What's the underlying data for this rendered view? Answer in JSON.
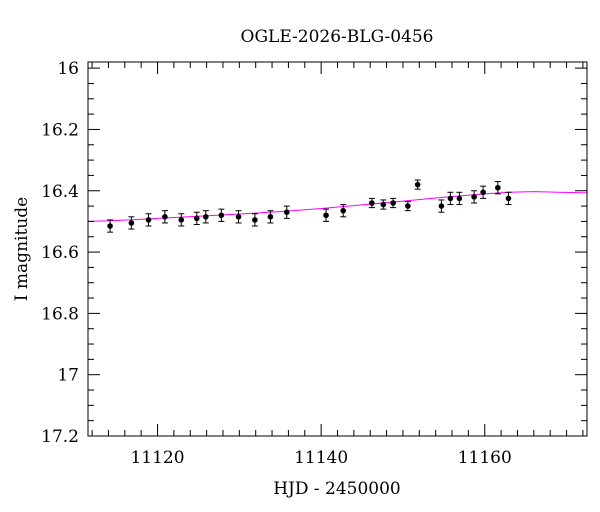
{
  "chart_data": {
    "type": "scatter",
    "title": "OGLE-2026-BLG-0456",
    "xlabel": "HJD - 2450000",
    "ylabel": "I magnitude",
    "xlim": [
      11111.5,
      11172.5
    ],
    "ylim": [
      17.2,
      15.98
    ],
    "y_inverted": true,
    "grid": false,
    "x_major_ticks": [
      11120,
      11140,
      11160
    ],
    "x_tick_labels": [
      "11120",
      "11140",
      "11160"
    ],
    "y_major_ticks": [
      16,
      16.2,
      16.4,
      16.6,
      16.8,
      17,
      17.2
    ],
    "y_tick_labels": [
      "16",
      "16.2",
      "16.4",
      "16.6",
      "16.8",
      "17",
      "17.2"
    ],
    "point_color": "#000000",
    "model_color": "#ff00ff",
    "series": [
      {
        "kind": "points",
        "x": [
          11114.2,
          11116.8,
          11118.9,
          11120.9,
          11122.9,
          11124.8,
          11125.9,
          11127.8,
          11129.9,
          11131.9,
          11133.8,
          11135.8,
          11140.6,
          11142.7,
          11146.2,
          11147.6,
          11148.8,
          11150.6,
          11151.8,
          11154.7,
          11155.8,
          11156.9,
          11158.7,
          11159.8,
          11161.6,
          11162.9
        ],
        "y": [
          16.515,
          16.505,
          16.495,
          16.485,
          16.495,
          16.49,
          16.485,
          16.48,
          16.485,
          16.495,
          16.485,
          16.47,
          16.48,
          16.465,
          16.44,
          16.445,
          16.44,
          16.45,
          16.38,
          16.45,
          16.425,
          16.425,
          16.42,
          16.405,
          16.39,
          16.425
        ],
        "err": [
          0.02,
          0.02,
          0.02,
          0.02,
          0.02,
          0.02,
          0.02,
          0.02,
          0.02,
          0.02,
          0.02,
          0.02,
          0.02,
          0.02,
          0.015,
          0.015,
          0.015,
          0.015,
          0.015,
          0.02,
          0.02,
          0.02,
          0.02,
          0.02,
          0.02,
          0.02
        ]
      },
      {
        "kind": "model",
        "x": [
          11111.5,
          11115,
          11120,
          11125,
          11130,
          11135,
          11140,
          11145,
          11150,
          11155,
          11160,
          11163,
          11166,
          11169,
          11172.5
        ],
        "y": [
          16.5,
          16.497,
          16.49,
          16.483,
          16.476,
          16.468,
          16.458,
          16.446,
          16.434,
          16.421,
          16.41,
          16.405,
          16.403,
          16.405,
          16.407
        ]
      }
    ]
  }
}
